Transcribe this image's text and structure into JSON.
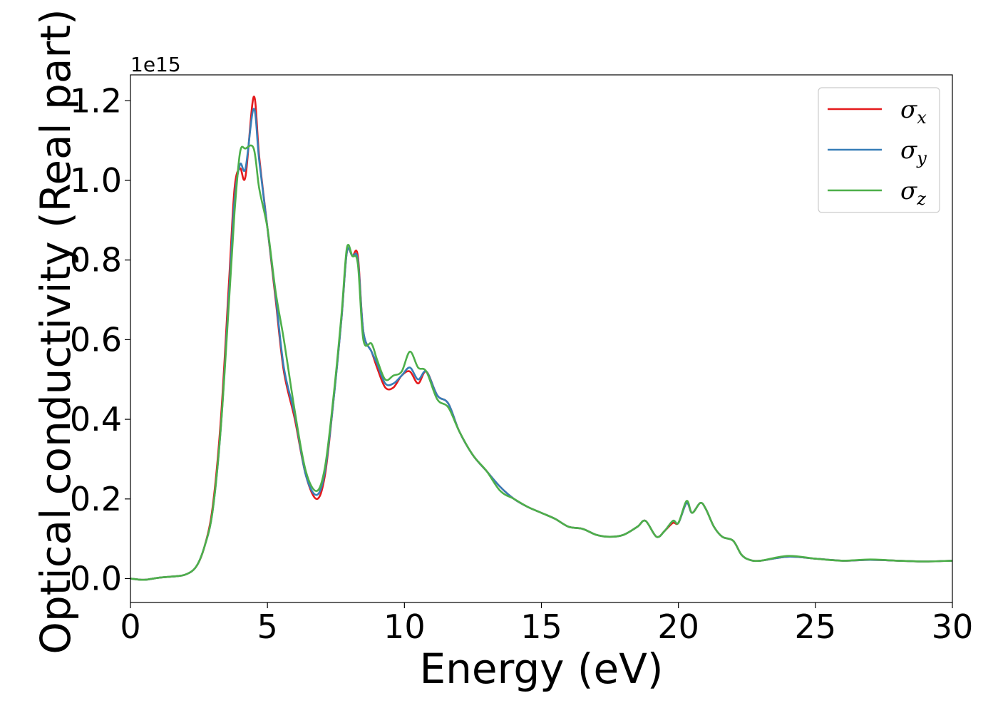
{
  "chart_data": {
    "type": "line",
    "xlabel": "Energy (eV)",
    "ylabel": "Optical conductivity (Real part)",
    "y_offset_text": "1e15",
    "xlim": [
      0,
      30
    ],
    "ylim": [
      -0.06,
      1.265
    ],
    "x_ticks": [
      0,
      5,
      10,
      15,
      20,
      25,
      30
    ],
    "x_tick_labels": [
      "0",
      "5",
      "10",
      "15",
      "20",
      "25",
      "30"
    ],
    "y_ticks": [
      0.0,
      0.2,
      0.4,
      0.6,
      0.8,
      1.0,
      1.2
    ],
    "y_tick_labels": [
      "0.0",
      "0.2",
      "0.4",
      "0.6",
      "0.8",
      "1.0",
      "1.2"
    ],
    "grid": false,
    "legend_position": "top-right",
    "series": [
      {
        "name": "σx",
        "symbol": "σ",
        "subscript": "x",
        "color": "#e41a1c",
        "x": [
          0,
          0.5,
          1,
          1.5,
          2,
          2.4,
          2.7,
          3.0,
          3.3,
          3.6,
          3.8,
          4.0,
          4.2,
          4.5,
          4.7,
          5.0,
          5.3,
          5.6,
          6.0,
          6.4,
          6.8,
          7.1,
          7.4,
          7.7,
          7.9,
          8.1,
          8.3,
          8.5,
          8.8,
          9.0,
          9.3,
          9.6,
          9.9,
          10.2,
          10.5,
          10.8,
          11.2,
          11.6,
          12.0,
          12.5,
          13.0,
          13.5,
          14.0,
          14.5,
          15.0,
          15.5,
          16.0,
          16.5,
          17.0,
          17.5,
          18.0,
          18.5,
          18.8,
          19.2,
          19.5,
          19.8,
          20.0,
          20.3,
          20.5,
          20.8,
          21.0,
          21.3,
          21.6,
          22.0,
          22.3,
          22.6,
          23.0,
          24.0,
          25.0,
          26.0,
          27.0,
          28.0,
          29.0,
          30.0
        ],
        "y": [
          0.0,
          -0.003,
          0.002,
          0.005,
          0.01,
          0.03,
          0.08,
          0.18,
          0.4,
          0.75,
          0.98,
          1.03,
          1.01,
          1.21,
          1.06,
          0.88,
          0.7,
          0.52,
          0.4,
          0.26,
          0.2,
          0.26,
          0.44,
          0.65,
          0.82,
          0.81,
          0.81,
          0.62,
          0.57,
          0.53,
          0.48,
          0.48,
          0.51,
          0.52,
          0.49,
          0.52,
          0.46,
          0.44,
          0.37,
          0.31,
          0.27,
          0.23,
          0.2,
          0.18,
          0.165,
          0.15,
          0.13,
          0.125,
          0.11,
          0.105,
          0.11,
          0.13,
          0.145,
          0.105,
          0.12,
          0.14,
          0.14,
          0.19,
          0.165,
          0.19,
          0.175,
          0.13,
          0.105,
          0.095,
          0.06,
          0.047,
          0.045,
          0.055,
          0.05,
          0.045,
          0.047,
          0.045,
          0.043,
          0.045
        ]
      },
      {
        "name": "σy",
        "symbol": "σ",
        "subscript": "y",
        "color": "#377eb8",
        "x": [
          0,
          0.5,
          1,
          1.5,
          2,
          2.4,
          2.7,
          3.0,
          3.3,
          3.6,
          3.8,
          4.0,
          4.2,
          4.5,
          4.7,
          5.0,
          5.3,
          5.6,
          6.0,
          6.4,
          6.8,
          7.1,
          7.4,
          7.7,
          7.9,
          8.1,
          8.3,
          8.5,
          8.8,
          9.0,
          9.3,
          9.6,
          9.9,
          10.2,
          10.5,
          10.8,
          11.2,
          11.6,
          12.0,
          12.5,
          13.0,
          13.5,
          14.0,
          14.5,
          15.0,
          15.5,
          16.0,
          16.5,
          17.0,
          17.5,
          18.0,
          18.5,
          18.8,
          19.2,
          19.5,
          19.8,
          20.0,
          20.3,
          20.5,
          20.8,
          21.0,
          21.3,
          21.6,
          22.0,
          22.3,
          22.6,
          23.0,
          24.0,
          25.0,
          26.0,
          27.0,
          28.0,
          29.0,
          30.0
        ],
        "y": [
          0.0,
          -0.003,
          0.002,
          0.005,
          0.01,
          0.03,
          0.08,
          0.17,
          0.38,
          0.72,
          0.95,
          1.04,
          1.03,
          1.18,
          1.05,
          0.88,
          0.71,
          0.53,
          0.41,
          0.26,
          0.21,
          0.27,
          0.44,
          0.65,
          0.82,
          0.81,
          0.8,
          0.62,
          0.57,
          0.54,
          0.49,
          0.49,
          0.51,
          0.53,
          0.5,
          0.52,
          0.46,
          0.44,
          0.37,
          0.31,
          0.27,
          0.23,
          0.2,
          0.18,
          0.165,
          0.15,
          0.13,
          0.125,
          0.11,
          0.105,
          0.11,
          0.13,
          0.145,
          0.105,
          0.12,
          0.145,
          0.14,
          0.19,
          0.165,
          0.19,
          0.175,
          0.13,
          0.105,
          0.095,
          0.06,
          0.047,
          0.045,
          0.055,
          0.05,
          0.045,
          0.047,
          0.045,
          0.043,
          0.045
        ]
      },
      {
        "name": "σz",
        "symbol": "σ",
        "subscript": "z",
        "color": "#4daf4a",
        "x": [
          0,
          0.5,
          1,
          1.5,
          2,
          2.4,
          2.7,
          3.0,
          3.3,
          3.6,
          3.8,
          4.0,
          4.2,
          4.5,
          4.7,
          5.0,
          5.3,
          5.6,
          6.0,
          6.4,
          6.8,
          7.1,
          7.4,
          7.7,
          7.9,
          8.1,
          8.3,
          8.5,
          8.8,
          9.0,
          9.3,
          9.6,
          9.9,
          10.2,
          10.5,
          10.8,
          11.2,
          11.6,
          12.0,
          12.5,
          13.0,
          13.5,
          14.0,
          14.5,
          15.0,
          15.5,
          16.0,
          16.5,
          17.0,
          17.5,
          18.0,
          18.5,
          18.8,
          19.2,
          19.5,
          19.8,
          20.0,
          20.3,
          20.5,
          20.8,
          21.0,
          21.3,
          21.6,
          22.0,
          22.3,
          22.6,
          23.0,
          24.0,
          25.0,
          26.0,
          27.0,
          28.0,
          29.0,
          30.0
        ],
        "y": [
          0.0,
          -0.003,
          0.002,
          0.005,
          0.01,
          0.03,
          0.08,
          0.17,
          0.38,
          0.7,
          0.92,
          1.07,
          1.08,
          1.08,
          0.98,
          0.88,
          0.72,
          0.6,
          0.42,
          0.27,
          0.22,
          0.28,
          0.45,
          0.66,
          0.83,
          0.81,
          0.79,
          0.6,
          0.59,
          0.55,
          0.5,
          0.51,
          0.52,
          0.57,
          0.53,
          0.52,
          0.45,
          0.43,
          0.37,
          0.31,
          0.27,
          0.22,
          0.2,
          0.18,
          0.165,
          0.15,
          0.13,
          0.125,
          0.11,
          0.105,
          0.11,
          0.13,
          0.145,
          0.105,
          0.12,
          0.145,
          0.14,
          0.195,
          0.165,
          0.19,
          0.175,
          0.13,
          0.105,
          0.095,
          0.06,
          0.047,
          0.045,
          0.057,
          0.05,
          0.045,
          0.048,
          0.045,
          0.043,
          0.045
        ]
      }
    ]
  }
}
